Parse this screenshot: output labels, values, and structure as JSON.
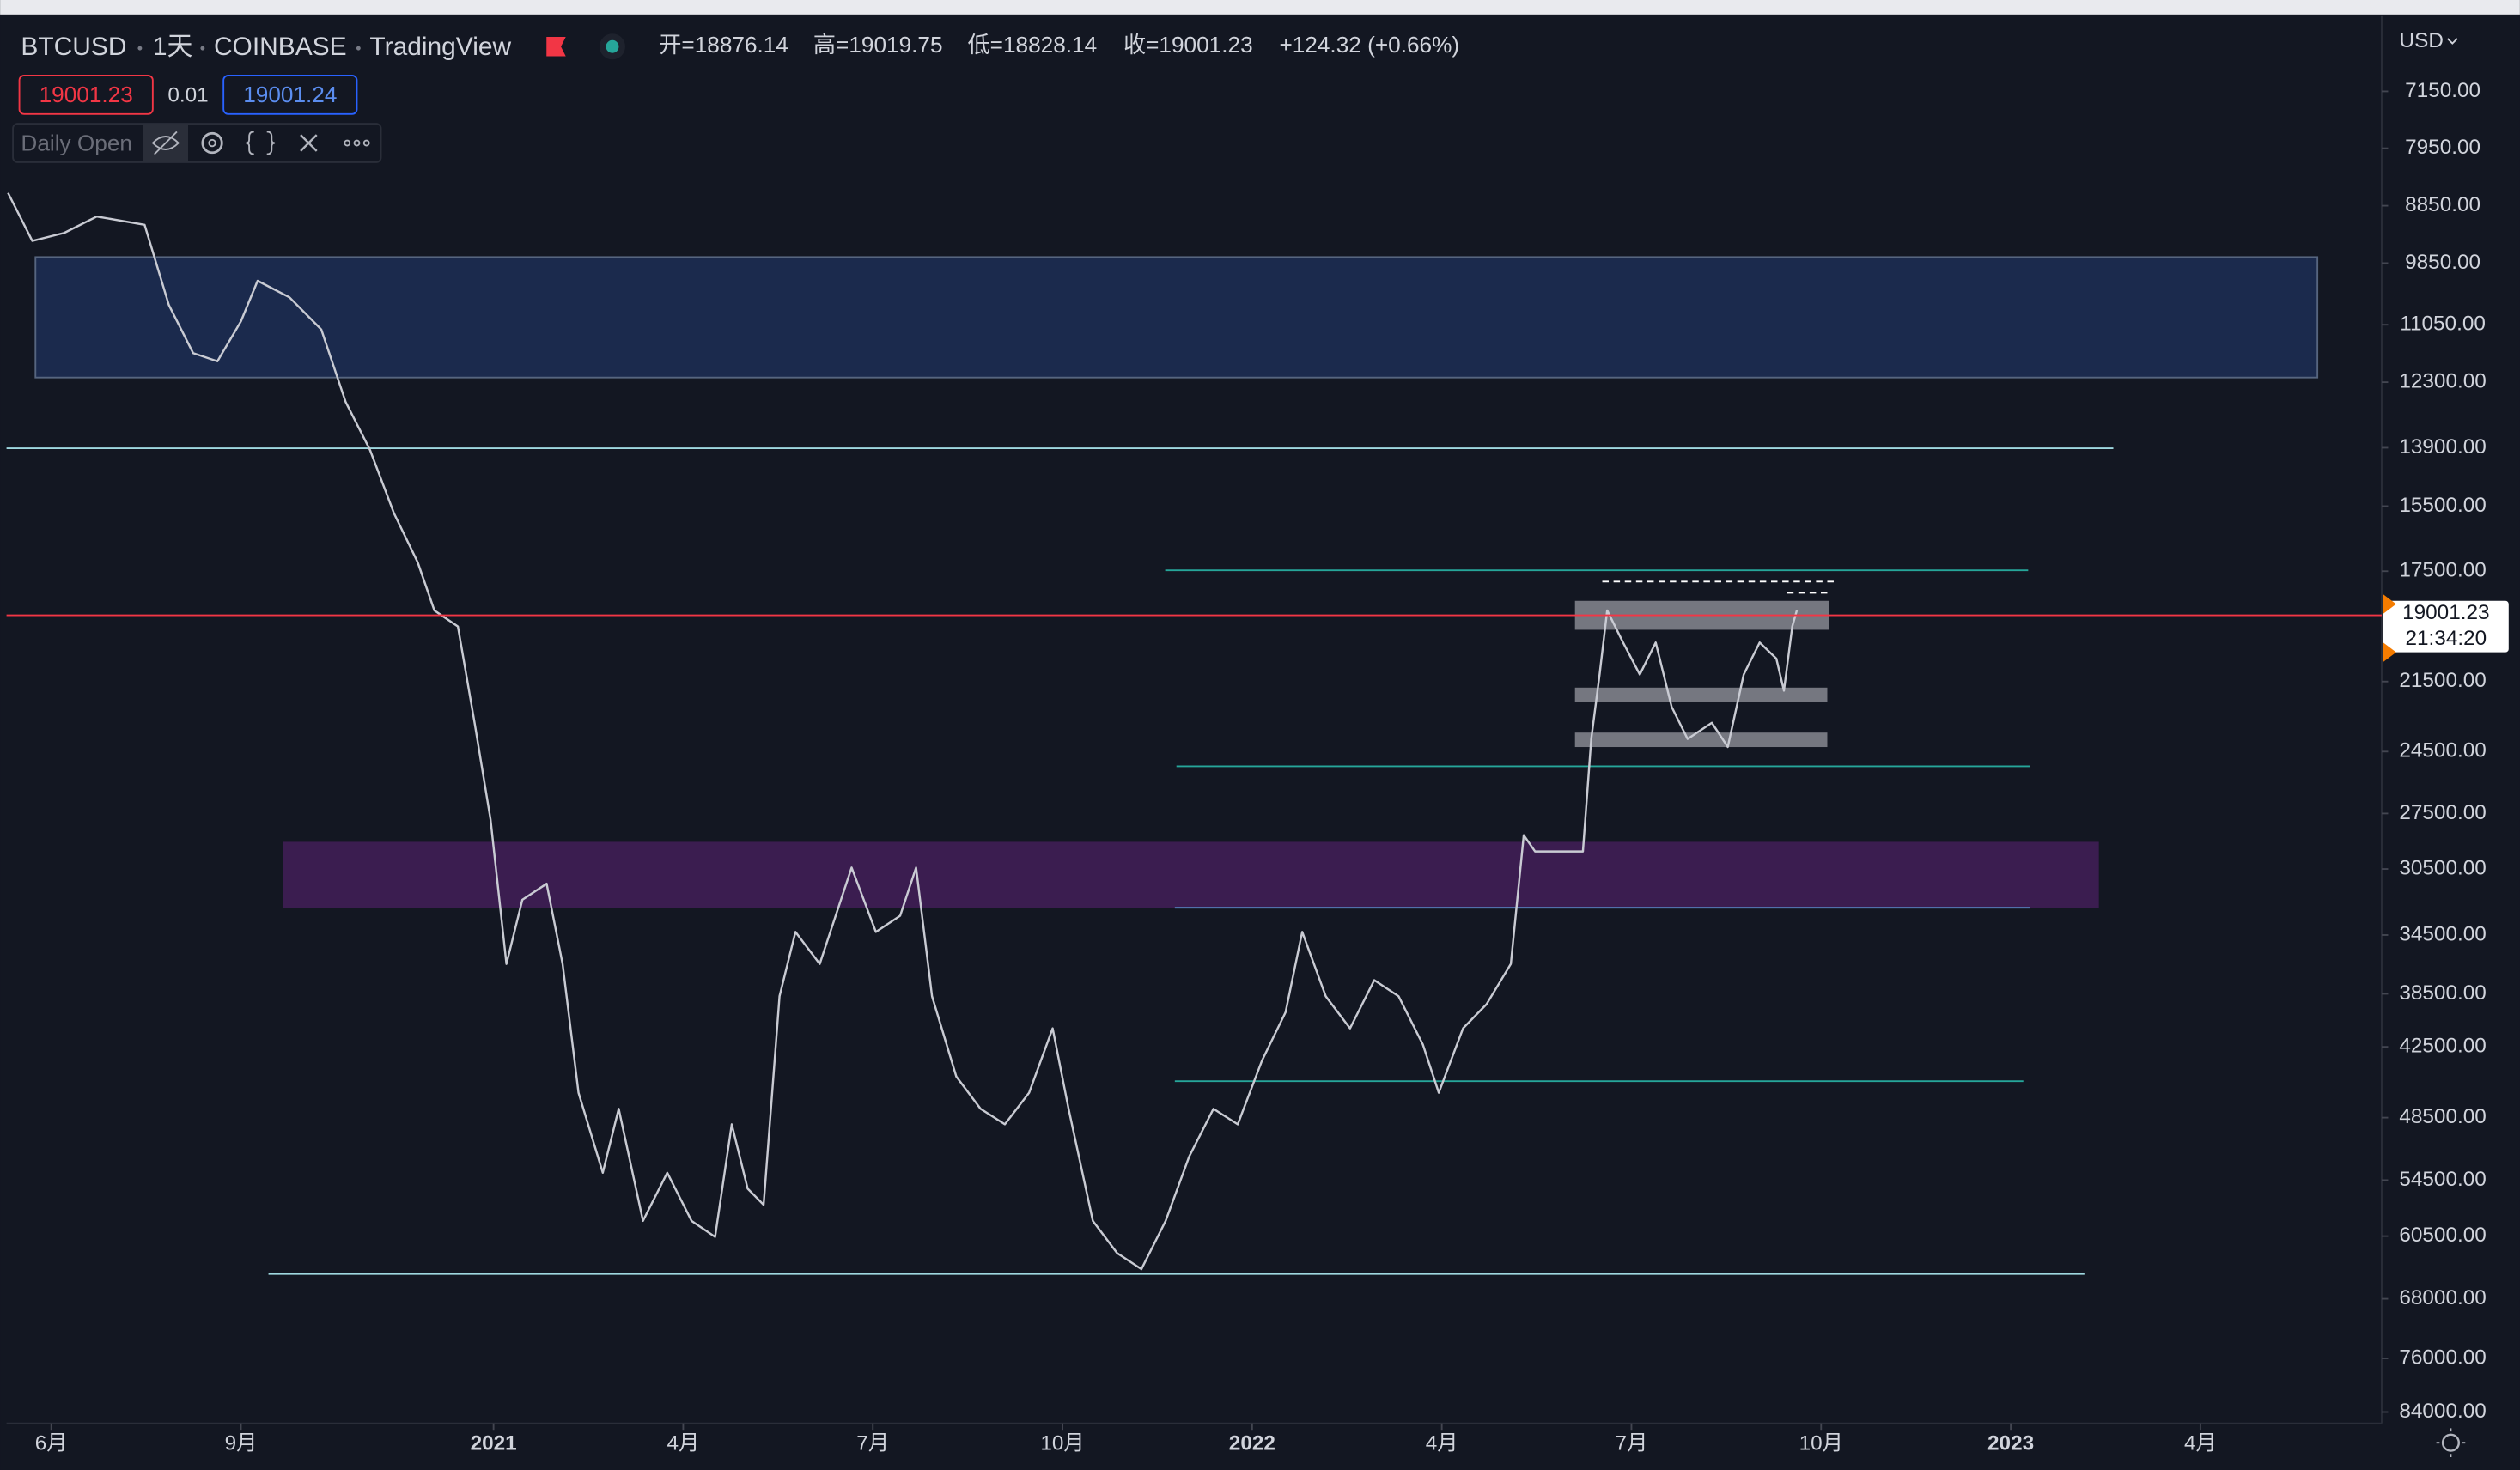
{
  "header": {
    "symbol": "BTCUSD",
    "interval": "1天",
    "exchange": "COINBASE",
    "source": "TradingView",
    "ohlc": [
      "开=18876.14",
      "高=19019.75",
      "低=18828.14",
      "收=19001.23",
      "+124.32 (+0.66%)"
    ],
    "sell": "19001.23",
    "spread": "0.01",
    "buy": "19001.24",
    "indicator": "Daily Open",
    "currency": "USD",
    "price_label": "19001.23",
    "countdown": "21:34:20"
  },
  "chart_data": {
    "type": "line",
    "log_scale": true,
    "inverted": true,
    "color": "#c9cbd3",
    "last_price": {
      "value": 19001.23,
      "label": "19001.23"
    },
    "xlim": [
      2020.358,
      2023.489
    ],
    "ylim": [
      6250,
      85800
    ],
    "xticks": [
      {
        "value": 2020.417,
        "label": "6月"
      },
      {
        "value": 2020.667,
        "label": "9月"
      },
      {
        "value": 2021,
        "label": "2021"
      },
      {
        "value": 2021.25,
        "label": "4月"
      },
      {
        "value": 2021.5,
        "label": "7月"
      },
      {
        "value": 2021.75,
        "label": "10月"
      },
      {
        "value": 2022,
        "label": "2022"
      },
      {
        "value": 2022.25,
        "label": "4月"
      },
      {
        "value": 2022.5,
        "label": "7月"
      },
      {
        "value": 2022.75,
        "label": "10月"
      },
      {
        "value": 2023,
        "label": "2023"
      },
      {
        "value": 2023.25,
        "label": "4月"
      }
    ],
    "yticks": [
      {
        "value": 7150,
        "label": "7150.00"
      },
      {
        "value": 7950,
        "label": "7950.00"
      },
      {
        "value": 8850,
        "label": "8850.00"
      },
      {
        "value": 9850,
        "label": "9850.00"
      },
      {
        "value": 11050,
        "label": "11050.00"
      },
      {
        "value": 12300,
        "label": "12300.00"
      },
      {
        "value": 13900,
        "label": "13900.00"
      },
      {
        "value": 15500,
        "label": "15500.00"
      },
      {
        "value": 17500,
        "label": "17500.00"
      },
      {
        "value": 21500,
        "label": "21500.00"
      },
      {
        "value": 24500,
        "label": "24500.00"
      },
      {
        "value": 27500,
        "label": "27500.00"
      },
      {
        "value": 30500,
        "label": "30500.00"
      },
      {
        "value": 34500,
        "label": "34500.00"
      },
      {
        "value": 38500,
        "label": "38500.00"
      },
      {
        "value": 42500,
        "label": "42500.00"
      },
      {
        "value": 48500,
        "label": "48500.00"
      },
      {
        "value": 54500,
        "label": "54500.00"
      },
      {
        "value": 60500,
        "label": "60500.00"
      },
      {
        "value": 68000,
        "label": "68000.00"
      },
      {
        "value": 76000,
        "label": "76000.00"
      },
      {
        "value": 84000,
        "label": "84000.00"
      }
    ],
    "x": [
      2020.36,
      2020.392,
      2020.434,
      2020.477,
      2020.54,
      2020.572,
      2020.604,
      2020.636,
      2020.667,
      2020.689,
      2020.731,
      2020.773,
      2020.805,
      2020.837,
      2020.869,
      2020.9,
      2020.922,
      2020.953,
      2020.975,
      2020.996,
      2021.017,
      2021.038,
      2021.07,
      2021.091,
      2021.112,
      2021.144,
      2021.165,
      2021.197,
      2021.229,
      2021.261,
      2021.292,
      2021.314,
      2021.335,
      2021.356,
      2021.377,
      2021.398,
      2021.43,
      2021.451,
      2021.472,
      2021.504,
      2021.536,
      2021.557,
      2021.578,
      2021.61,
      2021.642,
      2021.674,
      2021.706,
      2021.737,
      2021.758,
      2021.79,
      2021.822,
      2021.854,
      2021.886,
      2021.917,
      2021.949,
      2021.981,
      2022.013,
      2022.044,
      2022.066,
      2022.097,
      2022.129,
      2022.161,
      2022.193,
      2022.225,
      2022.246,
      2022.278,
      2022.309,
      2022.341,
      2022.358,
      2022.373,
      2022.405,
      2022.436,
      2022.447,
      2022.458,
      2022.468,
      2022.489,
      2022.511,
      2022.532,
      2022.553,
      2022.574,
      2022.606,
      2022.627,
      2022.648,
      2022.669,
      2022.691,
      2022.701,
      2022.712,
      2022.718
    ],
    "values": [
      8640,
      9450,
      9310,
      9030,
      9170,
      10650,
      11650,
      11830,
      10980,
      10180,
      10500,
      11150,
      12760,
      13950,
      15720,
      17210,
      18830,
      19400,
      23220,
      27800,
      36410,
      32300,
      31350,
      36410,
      46300,
      53750,
      47710,
      58800,
      53750,
      58800,
      60590,
      49110,
      55380,
      57060,
      38670,
      34300,
      36410,
      33280,
      30420,
      34300,
      33280,
      30420,
      38670,
      44920,
      47710,
      49110,
      46300,
      41060,
      47710,
      58800,
      62440,
      64340,
      58800,
      52150,
      47710,
      49110,
      43600,
      39850,
      34300,
      38670,
      41060,
      37530,
      38670,
      42310,
      46300,
      41060,
      39250,
      36410,
      28640,
      29520,
      29520,
      29520,
      23930,
      21220,
      18830,
      19990,
      21220,
      19990,
      22540,
      23930,
      23220,
      24290,
      21220,
      19990,
      20600,
      21870,
      19400,
      18830
    ]
  }
}
